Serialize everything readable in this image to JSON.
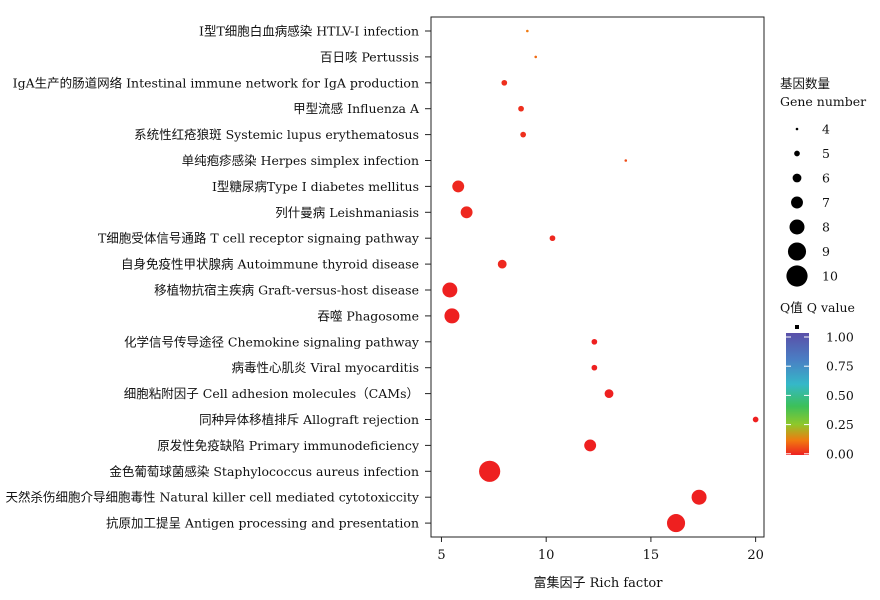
{
  "chart_data": {
    "type": "scatter",
    "title": "",
    "xlabel": "富集因子 Rich factor",
    "ylabel": "",
    "xlim": [
      4.5,
      20.4
    ],
    "xticks": [
      5,
      10,
      15,
      20
    ],
    "grid": false,
    "legend_position": "right",
    "categories": [
      "Ⅰ型T细胞白血病感染 HTLV-Ⅰ infection",
      "百日咳 Pertussis",
      "IgA生产的肠道网络 Intestinal immune network for IgA production",
      "甲型流感 Influenza A",
      "系统性红疮狼斑 Systemic lupus erythematosus",
      "单纯疱疹感染 Herpes simplex infection",
      "Ⅰ型糖尿病Type Ⅰ diabetes mellitus",
      "列什曼病 Leishmaniasis",
      "T细胞受体信号通路 T cell receptor signaing pathway",
      "自身免疫性甲状腺病 Autoimmune thyroid disease",
      "移植物抗宿主疾病 Graft-versus-host disease",
      "吞噬 Phagosome",
      "化学信号传导途径 Chemokine signaling pathway",
      "病毒性心肌炎 Viral myocarditis",
      "细胞粘附因子 Cell adhesion molecules（CAMs）",
      "同种异体移植排斥 Allograft rejection",
      "原发性免疫缺陷 Primary immunodeficiency",
      "金色葡萄球菌感染 Staphylococcus aureus infection",
      "天然杀伤细胞介导细胞毒性 Natural killer cell mediated cytotoxiccity",
      "抗原加工提呈 Antigen processing and presentation"
    ],
    "points": [
      {
        "x": 9.1,
        "gene_number": 4,
        "q_value": 0.12
      },
      {
        "x": 9.5,
        "gene_number": 4,
        "q_value": 0.1
      },
      {
        "x": 8.0,
        "gene_number": 5,
        "q_value": 0.02
      },
      {
        "x": 8.8,
        "gene_number": 5,
        "q_value": 0.02
      },
      {
        "x": 8.9,
        "gene_number": 5,
        "q_value": 0.02
      },
      {
        "x": 13.8,
        "gene_number": 4,
        "q_value": 0.06
      },
      {
        "x": 5.8,
        "gene_number": 7,
        "q_value": 0.01
      },
      {
        "x": 6.2,
        "gene_number": 7,
        "q_value": 0.01
      },
      {
        "x": 10.3,
        "gene_number": 5,
        "q_value": 0.01
      },
      {
        "x": 7.9,
        "gene_number": 6,
        "q_value": 0.01
      },
      {
        "x": 5.4,
        "gene_number": 8,
        "q_value": 0.0
      },
      {
        "x": 5.5,
        "gene_number": 8,
        "q_value": 0.0
      },
      {
        "x": 12.3,
        "gene_number": 5,
        "q_value": 0.0
      },
      {
        "x": 12.3,
        "gene_number": 5,
        "q_value": 0.0
      },
      {
        "x": 13.0,
        "gene_number": 6,
        "q_value": 0.0
      },
      {
        "x": 20.0,
        "gene_number": 5,
        "q_value": 0.0
      },
      {
        "x": 12.1,
        "gene_number": 7,
        "q_value": 0.0
      },
      {
        "x": 7.3,
        "gene_number": 10,
        "q_value": 0.0
      },
      {
        "x": 17.3,
        "gene_number": 8,
        "q_value": 0.0
      },
      {
        "x": 16.2,
        "gene_number": 9,
        "q_value": 0.0
      }
    ],
    "size_legend": {
      "title_zh": "基因数量",
      "title_en": "Gene number",
      "values": [
        4,
        5,
        6,
        7,
        8,
        9,
        10
      ]
    },
    "color_legend": {
      "title": "Q值 Q value",
      "ticks": [
        "1.00",
        "0.75",
        "0.50",
        "0.25",
        "0.00"
      ],
      "low_color": "#ee2020",
      "high_color": "#5a4fa8"
    }
  }
}
